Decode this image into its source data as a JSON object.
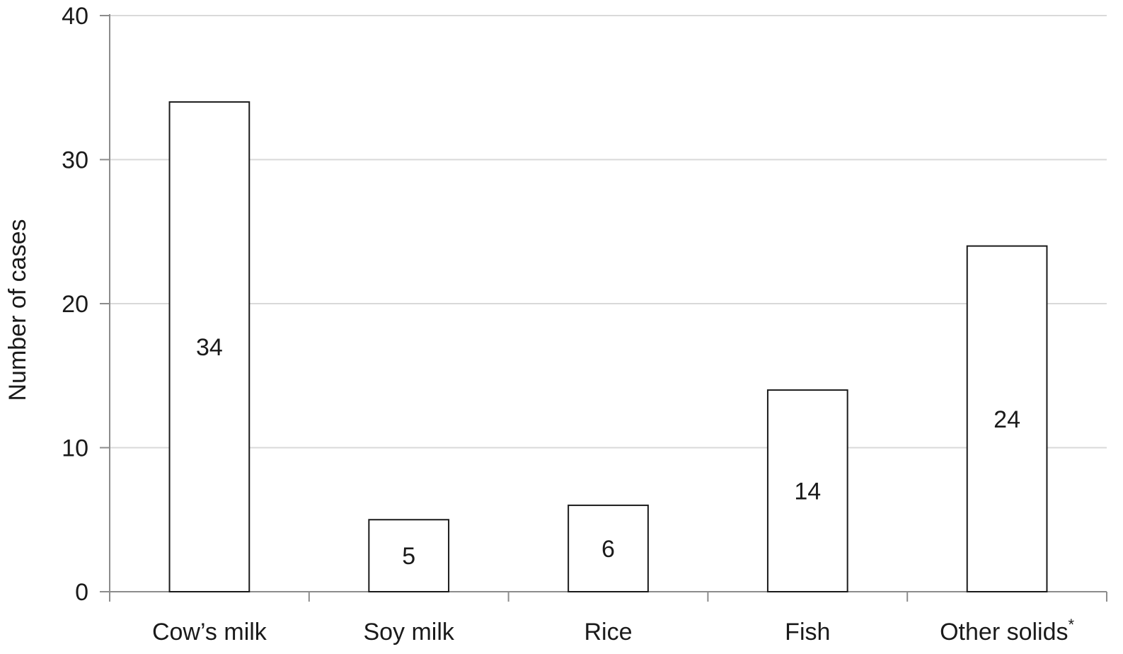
{
  "chart_data": {
    "type": "bar",
    "title": "",
    "xlabel": "",
    "ylabel": "Number of cases",
    "categories": [
      "Cow’s milk",
      "Soy milk",
      "Rice",
      "Fish",
      "Other solids"
    ],
    "category_footnote_marks": [
      "",
      "",
      "",
      "",
      "*"
    ],
    "values": [
      34,
      5,
      6,
      14,
      24
    ],
    "data_labels": [
      "34",
      "5",
      "6",
      "14",
      "24"
    ],
    "ylim": [
      0,
      40
    ],
    "yticks": [
      0,
      10,
      20,
      30,
      40
    ],
    "grid": "horizontal",
    "legend": "none",
    "colors": {
      "bar_fill": "#ffffff",
      "bar_stroke": "#1a1a1a",
      "grid": "#d9d9d9",
      "axis": "#8c8c8c",
      "text": "#1a1a1a"
    }
  }
}
